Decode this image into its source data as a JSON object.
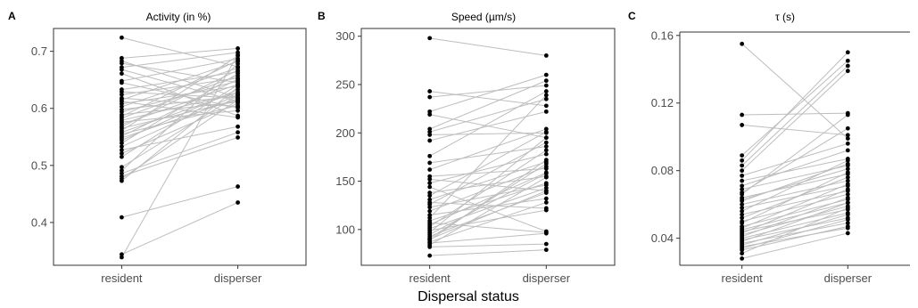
{
  "xlabel": "Dispersal status",
  "colors": {
    "line": "#bdbdbd",
    "point": "#000000",
    "axis": "#333333"
  },
  "chart_data": [
    {
      "letter": "A",
      "type": "scatter",
      "title": "Activity (in %)",
      "categories": [
        "resident",
        "disperser"
      ],
      "ylim": [
        0.325,
        0.74
      ],
      "yticks": [
        0.4,
        0.5,
        0.6,
        0.7
      ],
      "ytick_labels": [
        "0.4",
        "0.5",
        "0.6",
        "0.7"
      ],
      "frame": "box",
      "pairs": [
        [
          0.724,
          0.673
        ],
        [
          0.688,
          0.705
        ],
        [
          0.683,
          0.619
        ],
        [
          0.679,
          0.645
        ],
        [
          0.672,
          0.698
        ],
        [
          0.668,
          0.612
        ],
        [
          0.661,
          0.587
        ],
        [
          0.648,
          0.687
        ],
        [
          0.645,
          0.601
        ],
        [
          0.633,
          0.664
        ],
        [
          0.629,
          0.618
        ],
        [
          0.624,
          0.653
        ],
        [
          0.618,
          0.603
        ],
        [
          0.615,
          0.682
        ],
        [
          0.612,
          0.584
        ],
        [
          0.608,
          0.639
        ],
        [
          0.603,
          0.671
        ],
        [
          0.598,
          0.622
        ],
        [
          0.594,
          0.648
        ],
        [
          0.589,
          0.611
        ],
        [
          0.586,
          0.684
        ],
        [
          0.583,
          0.657
        ],
        [
          0.579,
          0.626
        ],
        [
          0.576,
          0.596
        ],
        [
          0.572,
          0.642
        ],
        [
          0.568,
          0.667
        ],
        [
          0.565,
          0.614
        ],
        [
          0.561,
          0.692
        ],
        [
          0.558,
          0.629
        ],
        [
          0.555,
          0.605
        ],
        [
          0.551,
          0.651
        ],
        [
          0.548,
          0.617
        ],
        [
          0.544,
          0.633
        ],
        [
          0.539,
          0.661
        ],
        [
          0.533,
          0.624
        ],
        [
          0.527,
          0.568
        ],
        [
          0.521,
          0.609
        ],
        [
          0.515,
          0.641
        ],
        [
          0.497,
          0.623
        ],
        [
          0.491,
          0.678
        ],
        [
          0.486,
          0.558
        ],
        [
          0.481,
          0.549
        ],
        [
          0.477,
          0.615
        ],
        [
          0.473,
          0.637
        ],
        [
          0.409,
          0.463
        ],
        [
          0.344,
          0.435
        ],
        [
          0.339,
          0.694
        ]
      ]
    },
    {
      "letter": "B",
      "type": "scatter",
      "title": "Speed (µm/s)",
      "categories": [
        "resident",
        "disperser"
      ],
      "ylim": [
        63,
        308
      ],
      "yticks": [
        100,
        150,
        200,
        250,
        300
      ],
      "ytick_labels": [
        "100",
        "150",
        "200",
        "250",
        "300"
      ],
      "frame": "box",
      "pairs": [
        [
          298,
          280
        ],
        [
          243,
          228
        ],
        [
          237,
          249
        ],
        [
          222,
          260
        ],
        [
          219,
          195
        ],
        [
          204,
          254
        ],
        [
          201,
          235
        ],
        [
          198,
          200
        ],
        [
          192,
          222
        ],
        [
          176,
          243
        ],
        [
          169,
          186
        ],
        [
          162,
          204
        ],
        [
          155,
          163
        ],
        [
          152,
          140
        ],
        [
          148,
          178
        ],
        [
          144,
          98
        ],
        [
          138,
          155
        ],
        [
          135,
          201
        ],
        [
          131,
          170
        ],
        [
          128,
          122
        ],
        [
          126,
          190
        ],
        [
          123,
          146
        ],
        [
          119,
          165
        ],
        [
          115,
          132
        ],
        [
          112,
          239
        ],
        [
          109,
          148
        ],
        [
          107,
          97
        ],
        [
          105,
          159
        ],
        [
          103,
          182
        ],
        [
          101,
          143
        ],
        [
          99,
          120
        ],
        [
          97,
          195
        ],
        [
          95,
          158
        ],
        [
          93,
          138
        ],
        [
          91,
          168
        ],
        [
          89,
          172
        ],
        [
          87,
          128
        ],
        [
          86,
          96
        ],
        [
          84,
          154
        ],
        [
          73,
          79
        ],
        [
          82,
          85
        ],
        [
          90,
          140
        ]
      ]
    },
    {
      "letter": "C",
      "type": "scatter",
      "title": "τ (s)",
      "categories": [
        "resident",
        "disperser"
      ],
      "ylim": [
        0.024,
        0.162
      ],
      "yticks": [
        0.04,
        0.08,
        0.12,
        0.16
      ],
      "ytick_labels": [
        "0.04",
        "0.08",
        "0.12",
        "0.16"
      ],
      "frame": "axes",
      "pairs": [
        [
          0.155,
          0.099
        ],
        [
          0.113,
          0.114
        ],
        [
          0.107,
          0.101
        ],
        [
          0.089,
          0.145
        ],
        [
          0.086,
          0.15
        ],
        [
          0.083,
          0.142
        ],
        [
          0.08,
          0.139
        ],
        [
          0.077,
          0.096
        ],
        [
          0.074,
          0.087
        ],
        [
          0.071,
          0.092
        ],
        [
          0.069,
          0.083
        ],
        [
          0.067,
          0.105
        ],
        [
          0.066,
          0.113
        ],
        [
          0.064,
          0.078
        ],
        [
          0.063,
          0.081
        ],
        [
          0.062,
          0.084
        ],
        [
          0.06,
          0.074
        ],
        [
          0.058,
          0.071
        ],
        [
          0.056,
          0.086
        ],
        [
          0.054,
          0.068
        ],
        [
          0.052,
          0.076
        ],
        [
          0.05,
          0.066
        ],
        [
          0.049,
          0.079
        ],
        [
          0.047,
          0.063
        ],
        [
          0.046,
          0.072
        ],
        [
          0.045,
          0.061
        ],
        [
          0.044,
          0.057
        ],
        [
          0.043,
          0.069
        ],
        [
          0.042,
          0.059
        ],
        [
          0.041,
          0.064
        ],
        [
          0.04,
          0.055
        ],
        [
          0.039,
          0.052
        ],
        [
          0.038,
          0.061
        ],
        [
          0.037,
          0.049
        ],
        [
          0.036,
          0.054
        ],
        [
          0.035,
          0.046
        ],
        [
          0.034,
          0.051
        ],
        [
          0.033,
          0.047
        ],
        [
          0.028,
          0.043
        ],
        [
          0.031,
          0.058
        ]
      ]
    }
  ]
}
